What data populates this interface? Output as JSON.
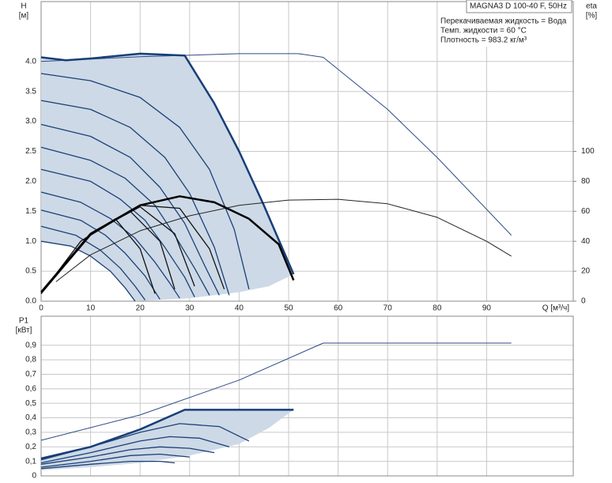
{
  "chart_data": [
    {
      "type": "line",
      "title": "MAGNA3 D 100-40 F, 50Hz",
      "annotations": [
        "Перекачиваемая жидкость = Вода",
        "Темп. жидкости = 60 °C",
        "Плотность = 983.2 кг/м³"
      ],
      "ylabel": [
        "H",
        "[м]"
      ],
      "y2label": [
        "eta",
        "[%]"
      ],
      "xlabel": "Q [м³/ч]",
      "xlim": [
        0,
        107.5
      ],
      "xticks": [
        0,
        10,
        20,
        30,
        40,
        50,
        60,
        70,
        80,
        90
      ],
      "ylim": [
        0,
        5
      ],
      "yticks": [
        {
          "value": 0,
          "label": "0.0"
        },
        0.5,
        {
          "value": 1,
          "label": "1.0"
        },
        1.5,
        {
          "value": 2,
          "label": "2.0"
        },
        2.5,
        {
          "value": 3,
          "label": "3.0"
        },
        3.5,
        {
          "value": 4,
          "label": "4.0"
        }
      ],
      "y2lim": [
        0,
        200
      ],
      "y2ticks": [
        0,
        20,
        40,
        60,
        80,
        100
      ],
      "grid": true,
      "series": [
        {
          "kind": "area",
          "color": "#cdd9e6",
          "x": [
            0,
            5,
            10,
            20,
            29,
            35,
            40,
            45,
            51,
            46,
            40,
            30,
            19,
            17,
            14,
            10,
            6,
            0
          ],
          "values": [
            4.07,
            4.02,
            4.05,
            4.13,
            4.1,
            3.3,
            2.5,
            1.6,
            0.45,
            0.25,
            0.15,
            0.05,
            0,
            0.22,
            0.5,
            0.75,
            0.92,
            1.0
          ]
        },
        {
          "color": "#2d4a86",
          "line_width": 1,
          "x": [
            0,
            20,
            40,
            52,
            57,
            70,
            80,
            95
          ],
          "values": [
            4.0,
            4.08,
            4.13,
            4.13,
            4.07,
            3.2,
            2.4,
            1.1
          ]
        },
        {
          "color": "#1c3f78",
          "line_width": 1.3,
          "x": [
            0,
            10,
            20,
            28,
            34,
            39,
            42
          ],
          "values": [
            3.8,
            3.68,
            3.4,
            2.9,
            2.2,
            1.2,
            0.2
          ]
        },
        {
          "color": "#1c3f78",
          "line_width": 1.3,
          "x": [
            0,
            10,
            18,
            25,
            30,
            35,
            38
          ],
          "values": [
            3.35,
            3.2,
            2.9,
            2.4,
            1.8,
            0.9,
            0.1
          ]
        },
        {
          "color": "#1c3f78",
          "line_width": 1.3,
          "x": [
            0,
            10,
            18,
            24,
            29,
            33,
            36
          ],
          "values": [
            2.95,
            2.75,
            2.4,
            1.9,
            1.3,
            0.6,
            0.1
          ]
        },
        {
          "color": "#1c3f78",
          "line_width": 1.3,
          "x": [
            0,
            10,
            17,
            23,
            27,
            31,
            34
          ],
          "values": [
            2.57,
            2.35,
            2.05,
            1.6,
            1.1,
            0.55,
            0.1
          ]
        },
        {
          "color": "#1c3f78",
          "line_width": 1.3,
          "x": [
            0,
            10,
            16,
            21,
            25,
            29,
            31
          ],
          "values": [
            2.2,
            2.0,
            1.7,
            1.35,
            0.9,
            0.4,
            0.07
          ]
        },
        {
          "color": "#1c3f78",
          "line_width": 1.3,
          "x": [
            0,
            8,
            14,
            19,
            23,
            26,
            28
          ],
          "values": [
            1.82,
            1.65,
            1.38,
            1.05,
            0.65,
            0.3,
            0.05
          ]
        },
        {
          "color": "#1c3f78",
          "line_width": 1.3,
          "x": [
            0,
            8,
            13,
            17,
            21,
            24
          ],
          "values": [
            1.52,
            1.35,
            1.1,
            0.8,
            0.42,
            0.03
          ]
        },
        {
          "color": "#1c3f78",
          "line_width": 1.3,
          "x": [
            0,
            7,
            12,
            16,
            19,
            21
          ],
          "values": [
            1.25,
            1.1,
            0.85,
            0.55,
            0.25,
            0.02
          ]
        },
        {
          "color": "#1c3f78",
          "line_width": 1.3,
          "x": [
            0,
            6,
            10,
            14,
            17,
            19
          ],
          "values": [
            1.0,
            0.92,
            0.75,
            0.5,
            0.22,
            0
          ]
        },
        {
          "color": "#173e78",
          "line_width": 2.5,
          "x": [
            0,
            5,
            10,
            20,
            29,
            35,
            40,
            45,
            51
          ],
          "values": [
            4.07,
            4.02,
            4.05,
            4.13,
            4.1,
            3.3,
            2.5,
            1.6,
            0.45
          ]
        },
        {
          "axis": "y2",
          "color": "#222222",
          "line_width": 1,
          "x": [
            3,
            10,
            20,
            30,
            40,
            50,
            60,
            70,
            80,
            90,
            95
          ],
          "values": [
            13,
            31,
            47,
            57,
            64,
            67.5,
            68,
            65,
            56,
            40,
            30
          ]
        },
        {
          "axis": "y2",
          "color": "#111111",
          "line_width": 1.3,
          "x": [
            0,
            8,
            15,
            20,
            23
          ],
          "values": [
            5,
            40,
            55,
            35,
            5
          ]
        },
        {
          "axis": "y2",
          "color": "#111111",
          "line_width": 1.3,
          "x": [
            0,
            10,
            18,
            24,
            27
          ],
          "values": [
            5,
            44,
            60,
            40,
            8
          ]
        },
        {
          "axis": "y2",
          "color": "#111111",
          "line_width": 1.3,
          "x": [
            0,
            10,
            20,
            27,
            31
          ],
          "values": [
            5,
            45,
            63,
            45,
            10
          ]
        },
        {
          "axis": "y2",
          "color": "#111111",
          "line_width": 1.3,
          "x": [
            0,
            10,
            20,
            28,
            34,
            37
          ],
          "values": [
            5,
            45,
            64,
            62,
            35,
            8
          ]
        },
        {
          "axis": "y2",
          "color": "#000000",
          "line_width": 2.5,
          "x": [
            0,
            10,
            20,
            28,
            35,
            42,
            48,
            51
          ],
          "values": [
            6,
            45,
            64,
            70,
            66,
            55,
            38,
            14
          ]
        }
      ]
    },
    {
      "type": "line",
      "ylabel": [
        "P1",
        "[кВт]"
      ],
      "xlim": [
        0,
        107.5
      ],
      "xticks": [
        0,
        10,
        20,
        30,
        40,
        50,
        60,
        70,
        80,
        90
      ],
      "ylim": [
        0,
        1.1
      ],
      "yticks": [
        0,
        {
          "value": 0.1,
          "label": "0,1"
        },
        {
          "value": 0.2,
          "label": "0,2"
        },
        {
          "value": 0.3,
          "label": "0,3"
        },
        {
          "value": 0.4,
          "label": "0,4"
        },
        {
          "value": 0.5,
          "label": "0,5"
        },
        {
          "value": 0.6,
          "label": "0,6"
        },
        {
          "value": 0.7,
          "label": "0,7"
        },
        {
          "value": 0.8,
          "label": "0,8"
        },
        {
          "value": 0.9,
          "label": "0,9"
        }
      ],
      "grid": true,
      "series": [
        {
          "kind": "area",
          "color": "#cdd9e6",
          "x": [
            0,
            10,
            20,
            29,
            51,
            46,
            40,
            30,
            20,
            10,
            0
          ],
          "values": [
            0.12,
            0.2,
            0.32,
            0.455,
            0.455,
            0.33,
            0.22,
            0.14,
            0.09,
            0.06,
            0.04
          ]
        },
        {
          "color": "#2d4a86",
          "line_width": 1,
          "x": [
            0,
            20,
            40,
            57,
            95
          ],
          "values": [
            0.245,
            0.42,
            0.66,
            0.915,
            0.915
          ]
        },
        {
          "color": "#1c3f78",
          "line_width": 1.3,
          "x": [
            0,
            10,
            20,
            28,
            36,
            42
          ],
          "values": [
            0.11,
            0.2,
            0.3,
            0.36,
            0.34,
            0.24
          ]
        },
        {
          "color": "#1c3f78",
          "line_width": 1.3,
          "x": [
            0,
            10,
            20,
            26,
            32,
            38
          ],
          "values": [
            0.09,
            0.16,
            0.24,
            0.27,
            0.26,
            0.2
          ]
        },
        {
          "color": "#1c3f78",
          "line_width": 1.3,
          "x": [
            0,
            10,
            18,
            24,
            30,
            35
          ],
          "values": [
            0.08,
            0.13,
            0.18,
            0.2,
            0.19,
            0.16
          ]
        },
        {
          "color": "#1c3f78",
          "line_width": 1.3,
          "x": [
            0,
            10,
            18,
            24,
            30
          ],
          "values": [
            0.06,
            0.1,
            0.14,
            0.15,
            0.13
          ]
        },
        {
          "color": "#1c3f78",
          "line_width": 1.3,
          "x": [
            0,
            10,
            18,
            24,
            27
          ],
          "values": [
            0.05,
            0.08,
            0.1,
            0.1,
            0.09
          ]
        },
        {
          "color": "#173e78",
          "line_width": 2.5,
          "x": [
            0,
            10,
            20,
            29,
            51
          ],
          "values": [
            0.12,
            0.2,
            0.32,
            0.455,
            0.455
          ]
        }
      ]
    }
  ]
}
